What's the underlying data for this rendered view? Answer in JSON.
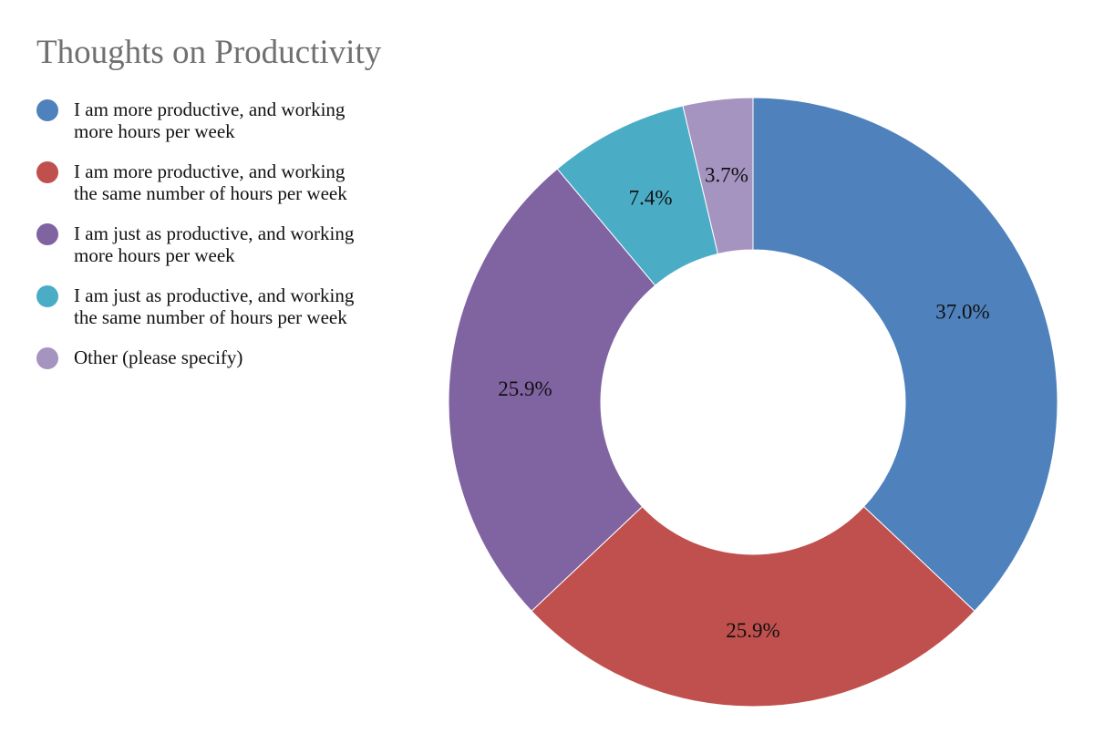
{
  "chart_data": {
    "type": "pie",
    "title": "Thoughts on Productivity",
    "donut": true,
    "legend_position": "left",
    "categories": [
      "I am more productive, and working\nmore hours per week",
      "I am more productive, and working\nthe same number of hours per week",
      "I am just as productive, and working\nmore hours per week",
      "I am just as productive, and working\nthe same number of hours per week",
      "Other (please specify)"
    ],
    "values": [
      37.0,
      25.9,
      25.9,
      7.4,
      3.7
    ],
    "value_labels": [
      "37.0%",
      "25.9%",
      "25.9%",
      "7.4%",
      "3.7%"
    ],
    "colors": [
      "#4f81bd",
      "#c0504d",
      "#8064a2",
      "#4bacc6",
      "#a593c0"
    ]
  }
}
